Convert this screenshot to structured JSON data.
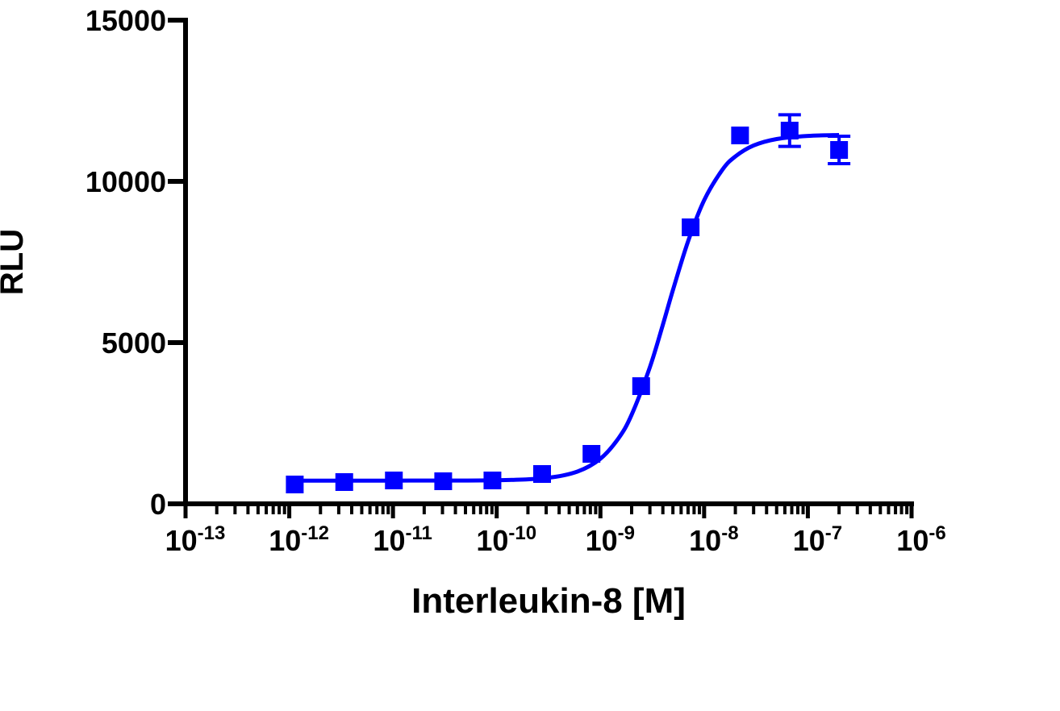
{
  "chart_data": {
    "type": "scatter",
    "x_label": "Interleukin-8 [M]",
    "y_label": "RLU",
    "xscale": "log",
    "xlim": [
      1e-13,
      1e-06
    ],
    "xticks": [
      {
        "value": 1e-13,
        "label": "10",
        "exponent": "-13"
      },
      {
        "value": 1e-12,
        "label": "10",
        "exponent": "-12"
      },
      {
        "value": 1e-11,
        "label": "10",
        "exponent": "-11"
      },
      {
        "value": 1e-10,
        "label": "10",
        "exponent": "-10"
      },
      {
        "value": 1e-09,
        "label": "10",
        "exponent": "-9"
      },
      {
        "value": 1e-08,
        "label": "10",
        "exponent": "-8"
      },
      {
        "value": 1e-07,
        "label": "10",
        "exponent": "-7"
      },
      {
        "value": 1e-06,
        "label": "10",
        "exponent": "-6"
      }
    ],
    "xminorticks": [
      2e-13,
      3e-13,
      4e-13,
      5e-13,
      6e-13,
      7e-13,
      8e-13,
      9e-13,
      2e-12,
      3e-12,
      4e-12,
      5e-12,
      6e-12,
      7e-12,
      8e-12,
      9e-12,
      2e-11,
      3e-11,
      4e-11,
      5e-11,
      6e-11,
      7e-11,
      8e-11,
      9e-11,
      2e-10,
      3e-10,
      4e-10,
      5e-10,
      6e-10,
      7e-10,
      8e-10,
      9e-10,
      2e-09,
      3e-09,
      4e-09,
      5e-09,
      6e-09,
      7e-09,
      8e-09,
      9e-09,
      2e-08,
      3e-08,
      4e-08,
      5e-08,
      6e-08,
      7e-08,
      8e-08,
      9e-08,
      2e-07,
      3e-07,
      4e-07,
      5e-07,
      6e-07,
      7e-07,
      8e-07,
      9e-07
    ],
    "ylim": [
      0,
      15000
    ],
    "yticks": [
      0,
      5000,
      10000,
      15000
    ],
    "color": "#0000ff",
    "x": [
      1.13e-12,
      3.39e-12,
      1.02e-11,
      3.05e-11,
      9.1e-11,
      2.74e-10,
      8.2e-10,
      2.47e-09,
      7.41e-09,
      2.22e-08,
      6.67e-08,
      2e-07
    ],
    "values": [
      600,
      675,
      725,
      700,
      725,
      925,
      1550,
      3650,
      8575,
      11425,
      11575,
      10975
    ],
    "errors": [
      null,
      null,
      null,
      null,
      null,
      null,
      null,
      null,
      null,
      null,
      490,
      425
    ],
    "fit": {
      "x": [
        1e-12,
        1e-11,
        1e-10,
        3e-10,
        6e-10,
        1e-09,
        1.5e-09,
        2e-09,
        3e-09,
        4e-09,
        5e-09,
        7e-09,
        1e-08,
        1.5e-08,
        2e-08,
        3e-08,
        5e-08,
        1e-07,
        2e-07
      ],
      "values": [
        720,
        720,
        732,
        802,
        1001,
        1400,
        2040,
        2764,
        4240,
        5553,
        6628,
        8140,
        9415,
        10361,
        10773,
        11113,
        11313,
        11410,
        11438
      ]
    }
  }
}
